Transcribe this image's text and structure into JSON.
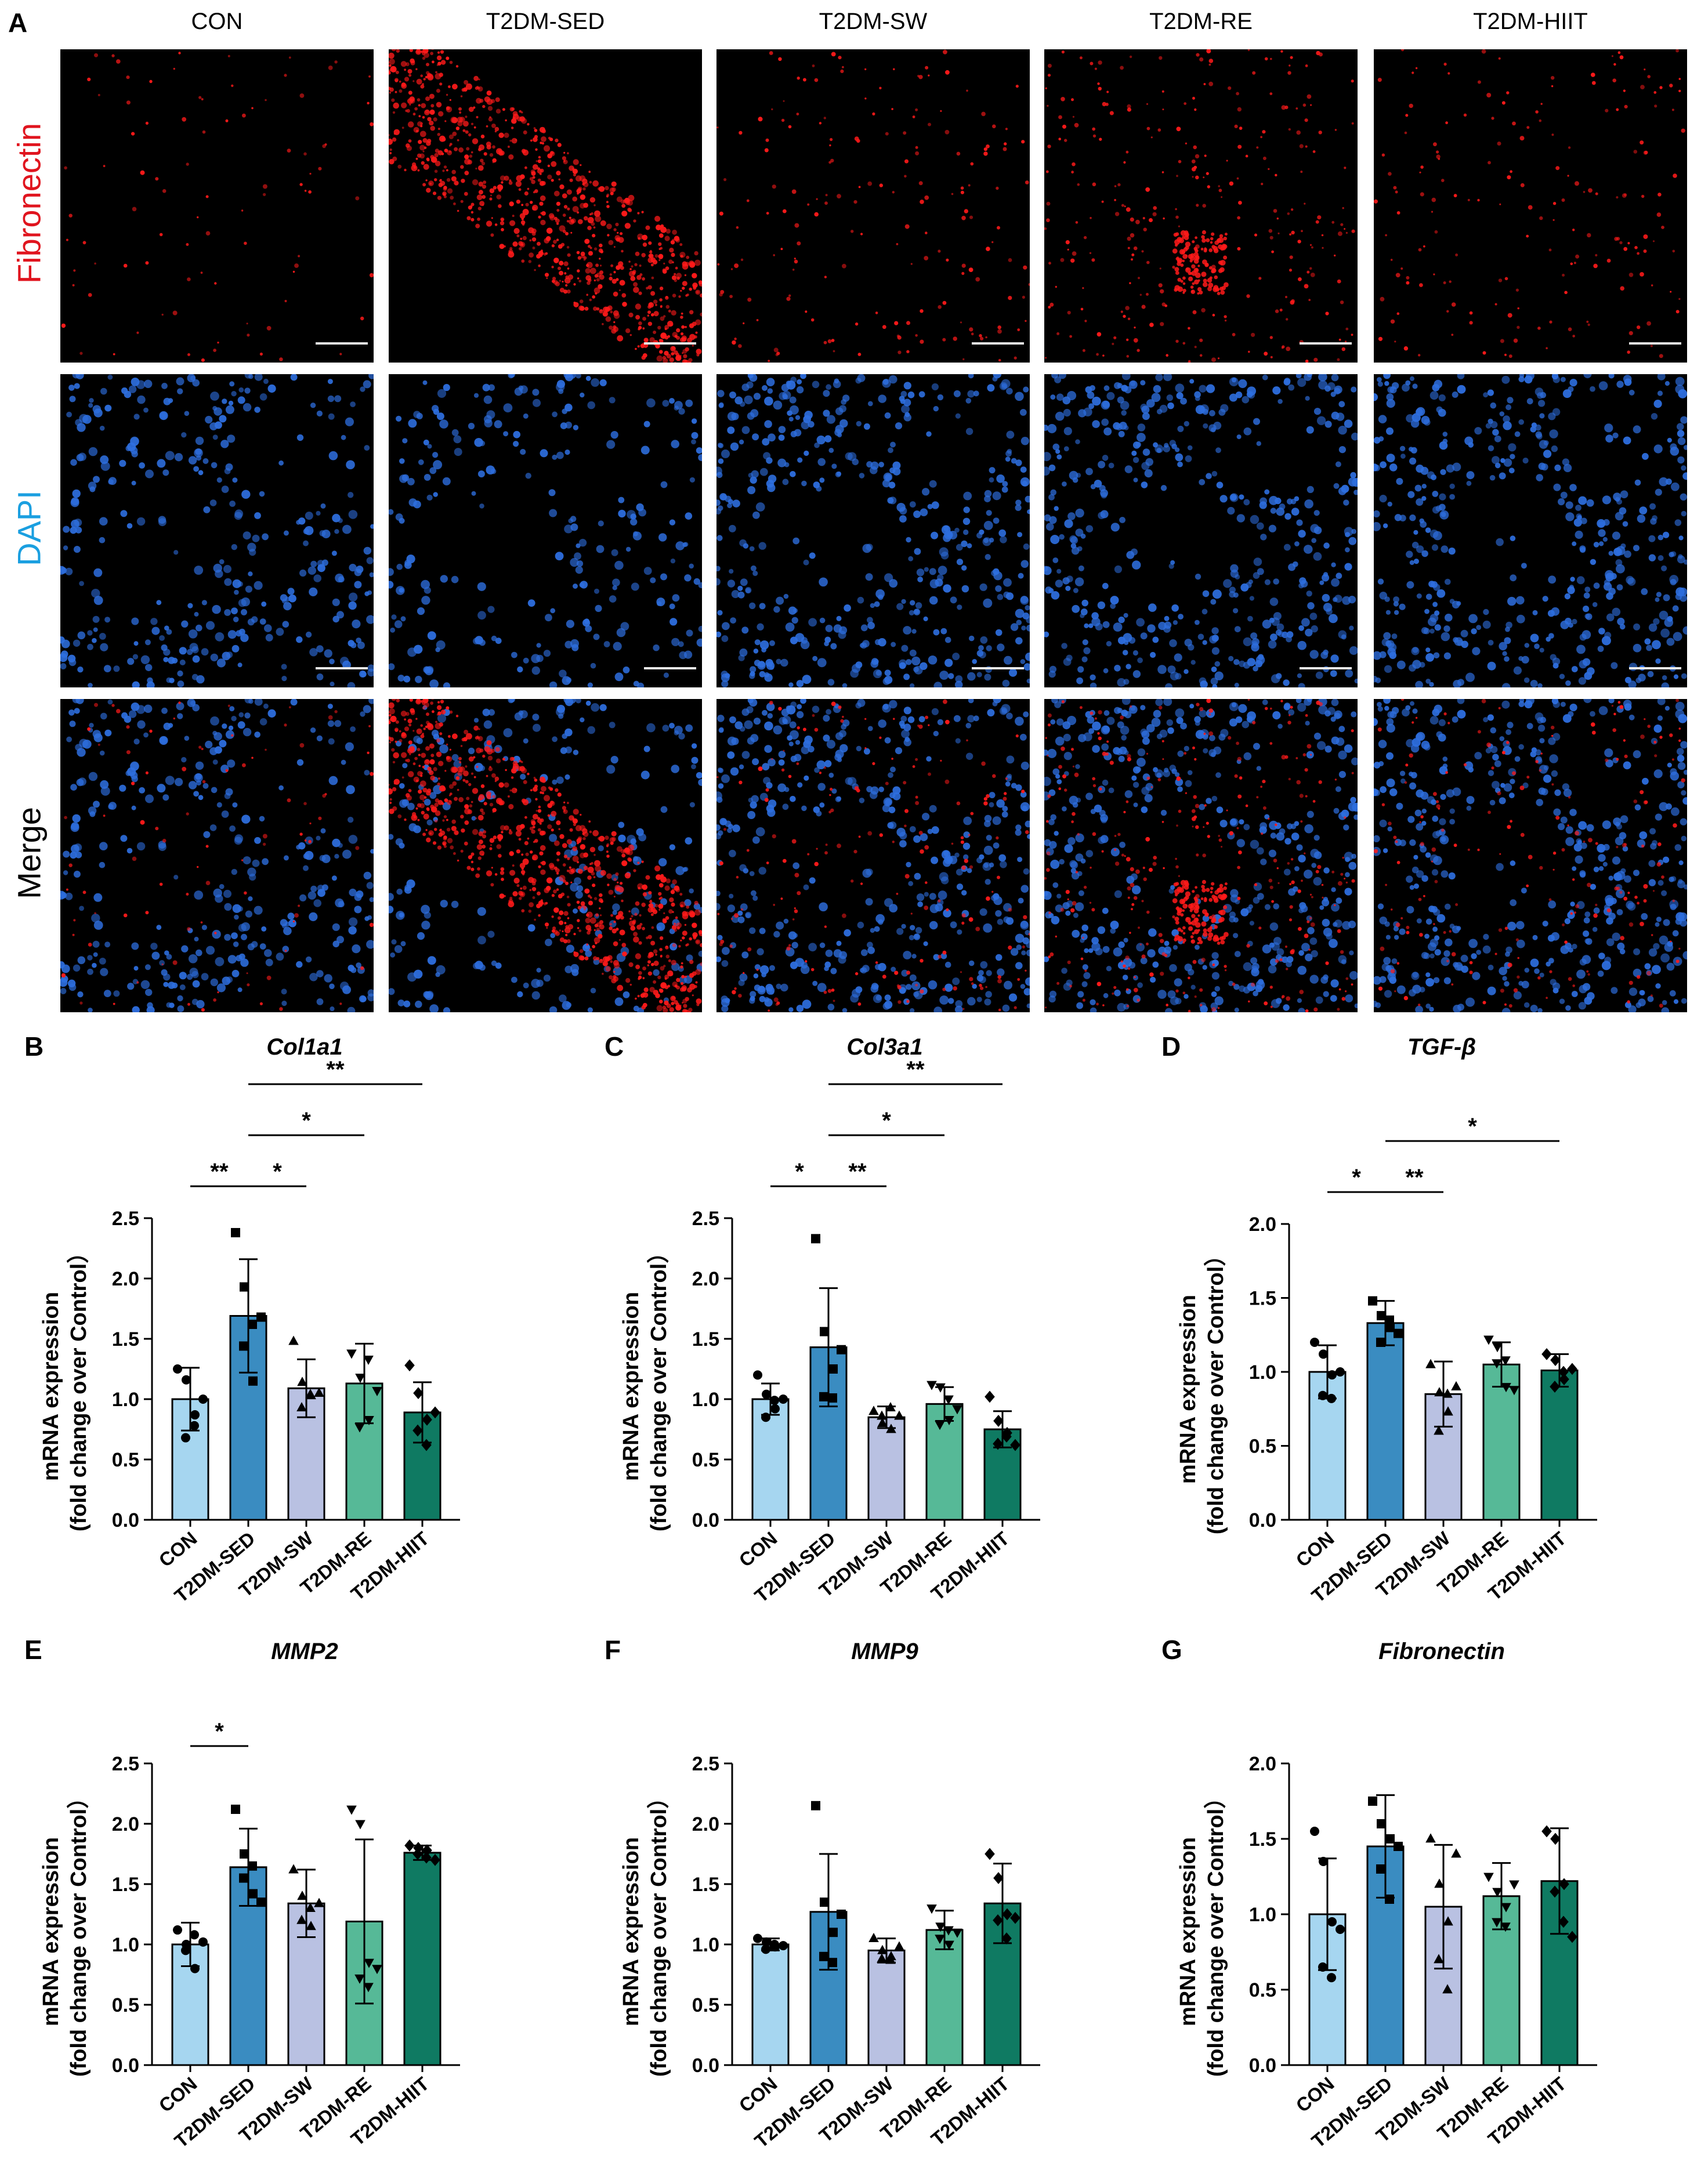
{
  "panel_a": {
    "letter": "A",
    "columns": [
      "CON",
      "T2DM-SED",
      "T2DM-SW",
      "T2DM-RE",
      "T2DM-HIIT"
    ],
    "rows": [
      {
        "label": "Fibronectin",
        "color": "#e0141e"
      },
      {
        "label": "DAPI",
        "color": "#1a9fe0"
      },
      {
        "label": "Merge",
        "color": "#000000"
      }
    ],
    "fluorescence_colors": {
      "fibronectin": "#ff1a1a",
      "dapi": "#2e6fe0",
      "background": "#000000"
    }
  },
  "colors": {
    "CON": "#a6d6f0",
    "T2DM-SED": "#3a8cc1",
    "T2DM-SW": "#b9c1e2",
    "T2DM-RE": "#56b997",
    "T2DM-HIIT": "#0f7a62"
  },
  "chart_data": [
    {
      "letter": "B",
      "type": "bar",
      "title": "Col1a1",
      "ylabel_1": "mRNA expression",
      "ylabel_2": "(fold change over Control）",
      "ylim": [
        0,
        2.5
      ],
      "yticks": [
        "0.0",
        "0.5",
        "1.0",
        "1.5",
        "2.0",
        "2.5"
      ],
      "categories": [
        "CON",
        "T2DM-SED",
        "T2DM-SW",
        "T2DM-RE",
        "T2DM-HIIT"
      ],
      "values": [
        1.0,
        1.69,
        1.09,
        1.13,
        0.89
      ],
      "errors": [
        0.26,
        0.47,
        0.24,
        0.33,
        0.25
      ],
      "markers": [
        "circle",
        "square",
        "triangle",
        "triangle-down",
        "diamond"
      ],
      "points": [
        [
          1.25,
          1.16,
          0.87,
          0.68,
          0.78,
          1.0
        ],
        [
          2.38,
          1.93,
          1.15,
          1.44,
          1.62,
          1.68
        ],
        [
          1.48,
          1.14,
          1.03,
          0.93,
          1.04,
          1.05
        ],
        [
          1.38,
          1.18,
          0.83,
          0.77,
          1.33,
          1.07
        ],
        [
          1.28,
          1.05,
          0.83,
          0.74,
          0.62,
          0.89
        ]
      ],
      "significance": [
        {
          "from": 0,
          "to": 1,
          "label": "**",
          "y": 2.5
        },
        {
          "from": 1,
          "to": 2,
          "label": "*",
          "y": 2.5
        },
        {
          "from": 1,
          "to": 3,
          "label": "*",
          "y": 2.8
        },
        {
          "from": 1,
          "to": 4,
          "label": "**",
          "y": 3.1
        }
      ]
    },
    {
      "letter": "C",
      "type": "bar",
      "title": "Col3a1",
      "ylabel_1": "mRNA expression",
      "ylabel_2": "(fold change over Control）",
      "ylim": [
        0,
        2.5
      ],
      "yticks": [
        "0.0",
        "0.5",
        "1.0",
        "1.5",
        "2.0",
        "2.5"
      ],
      "categories": [
        "CON",
        "T2DM-SED",
        "T2DM-SW",
        "T2DM-RE",
        "T2DM-HIIT"
      ],
      "values": [
        1.0,
        1.43,
        0.85,
        0.96,
        0.75
      ],
      "errors": [
        0.13,
        0.49,
        0.09,
        0.14,
        0.15
      ],
      "markers": [
        "circle",
        "square",
        "triangle",
        "triangle-down",
        "diamond"
      ],
      "points": [
        [
          1.2,
          1.04,
          0.92,
          0.85,
          0.99,
          1.0
        ],
        [
          2.33,
          1.56,
          1.25,
          1.02,
          1.01,
          1.41
        ],
        [
          0.9,
          0.8,
          0.75,
          0.86,
          0.93,
          0.86
        ],
        [
          1.12,
          1.1,
          0.83,
          0.79,
          1.0,
          0.92
        ],
        [
          1.02,
          0.82,
          0.72,
          0.63,
          0.69,
          0.62
        ]
      ],
      "significance": [
        {
          "from": 0,
          "to": 1,
          "label": "*",
          "y": 2.5
        },
        {
          "from": 1,
          "to": 2,
          "label": "**",
          "y": 2.5
        },
        {
          "from": 1,
          "to": 3,
          "label": "*",
          "y": 2.8
        },
        {
          "from": 1,
          "to": 4,
          "label": "**",
          "y": 3.1
        }
      ]
    },
    {
      "letter": "D",
      "type": "bar",
      "title": "TGF-β",
      "ylabel_1": "mRNA expression",
      "ylabel_2": "(fold change over Control）",
      "ylim": [
        0,
        2.0
      ],
      "yticks": [
        "0.0",
        "0.5",
        "1.0",
        "1.5",
        "2.0"
      ],
      "categories": [
        "CON",
        "T2DM-SED",
        "T2DM-SW",
        "T2DM-RE",
        "T2DM-HIIT"
      ],
      "values": [
        1.0,
        1.33,
        0.85,
        1.05,
        1.01
      ],
      "errors": [
        0.18,
        0.15,
        0.22,
        0.15,
        0.11
      ],
      "markers": [
        "circle",
        "square",
        "triangle",
        "triangle-down",
        "diamond"
      ],
      "points": [
        [
          1.2,
          1.12,
          0.98,
          0.84,
          0.82,
          1.0
        ],
        [
          1.48,
          1.38,
          1.3,
          1.2,
          1.35,
          1.26
        ],
        [
          1.05,
          0.86,
          0.73,
          0.6,
          0.85,
          0.9
        ],
        [
          1.22,
          1.17,
          0.9,
          1.06,
          1.08,
          0.88
        ],
        [
          1.12,
          1.08,
          0.95,
          0.9,
          1.0,
          1.02
        ]
      ],
      "significance": [
        {
          "from": 0,
          "to": 1,
          "label": "*",
          "y": 1.62
        },
        {
          "from": 1,
          "to": 2,
          "label": "**",
          "y": 1.62
        },
        {
          "from": 1,
          "to": 4,
          "label": "*",
          "y": 1.9
        }
      ]
    },
    {
      "letter": "E",
      "type": "bar",
      "title": "MMP2",
      "ylabel_1": "mRNA expression",
      "ylabel_2": "(fold change over Control）",
      "ylim": [
        0,
        2.5
      ],
      "yticks": [
        "0.0",
        "0.5",
        "1.0",
        "1.5",
        "2.0",
        "2.5"
      ],
      "categories": [
        "CON",
        "T2DM-SED",
        "T2DM-SW",
        "T2DM-RE",
        "T2DM-HIIT"
      ],
      "values": [
        1.0,
        1.64,
        1.34,
        1.19,
        1.76
      ],
      "errors": [
        0.18,
        0.32,
        0.28,
        0.68,
        0.06
      ],
      "markers": [
        "circle",
        "square",
        "triangle",
        "triangle-down",
        "diamond"
      ],
      "points": [
        [
          1.12,
          1.0,
          0.8,
          0.95,
          1.08,
          1.02
        ],
        [
          2.12,
          1.75,
          1.42,
          1.55,
          1.65,
          1.35
        ],
        [
          1.62,
          1.4,
          1.15,
          1.2,
          1.3,
          1.34
        ],
        [
          2.12,
          2.0,
          0.85,
          0.72,
          0.65,
          0.8
        ],
        [
          1.82,
          1.8,
          1.78,
          1.75,
          1.72,
          1.7
        ]
      ],
      "significance": [
        {
          "from": 0,
          "to": 1,
          "label": "*",
          "y": 2.5
        }
      ]
    },
    {
      "letter": "F",
      "type": "bar",
      "title": "MMP9",
      "ylabel_1": "mRNA expression",
      "ylabel_2": "(fold change over Control）",
      "ylim": [
        0,
        2.5
      ],
      "yticks": [
        "0.0",
        "0.5",
        "1.0",
        "1.5",
        "2.0",
        "2.5"
      ],
      "categories": [
        "CON",
        "T2DM-SED",
        "T2DM-SW",
        "T2DM-RE",
        "T2DM-HIIT"
      ],
      "values": [
        1.0,
        1.27,
        0.95,
        1.12,
        1.34
      ],
      "errors": [
        0.05,
        0.48,
        0.1,
        0.16,
        0.33
      ],
      "markers": [
        "circle",
        "square",
        "triangle",
        "triangle-down",
        "diamond"
      ],
      "points": [
        [
          1.05,
          1.02,
          0.98,
          0.96,
          1.0,
          0.99
        ],
        [
          2.15,
          1.35,
          1.1,
          0.9,
          0.85,
          1.25
        ],
        [
          1.05,
          0.95,
          0.9,
          0.88,
          0.87,
          0.98
        ],
        [
          1.3,
          1.15,
          1.0,
          1.05,
          1.12,
          1.1
        ],
        [
          1.75,
          1.55,
          1.25,
          1.2,
          1.05,
          1.22
        ]
      ],
      "significance": []
    },
    {
      "letter": "G",
      "type": "bar",
      "title": "Fibronectin",
      "ylabel_1": "mRNA expression",
      "ylabel_2": "(fold change over Control）",
      "ylim": [
        0,
        2.0
      ],
      "yticks": [
        "0.0",
        "0.5",
        "1.0",
        "1.5",
        "2.0"
      ],
      "categories": [
        "CON",
        "T2DM-SED",
        "T2DM-SW",
        "T2DM-RE",
        "T2DM-HIIT"
      ],
      "values": [
        1.0,
        1.45,
        1.05,
        1.12,
        1.22
      ],
      "errors": [
        0.37,
        0.34,
        0.41,
        0.22,
        0.35
      ],
      "markers": [
        "circle",
        "square",
        "triangle",
        "triangle-down",
        "diamond"
      ],
      "points": [
        [
          1.55,
          1.35,
          0.95,
          0.65,
          0.58,
          0.9
        ],
        [
          1.75,
          1.6,
          1.5,
          1.3,
          1.1,
          1.45
        ],
        [
          1.5,
          1.2,
          0.95,
          0.7,
          0.5,
          1.4
        ],
        [
          1.25,
          1.15,
          1.05,
          0.95,
          0.92,
          1.2
        ],
        [
          1.55,
          1.5,
          1.2,
          1.15,
          0.95,
          0.85
        ]
      ],
      "significance": []
    }
  ]
}
